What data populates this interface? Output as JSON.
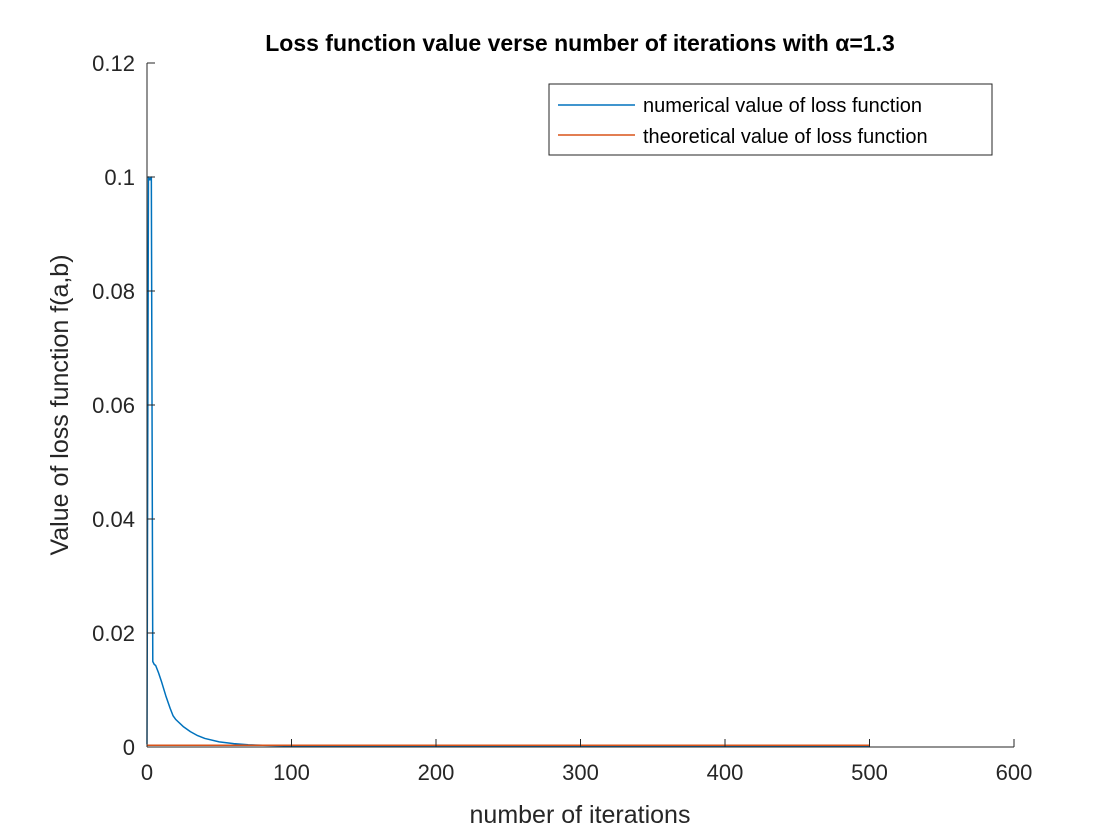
{
  "chart_data": {
    "type": "line",
    "title": "Loss function value verse number of iterations with α=1.3",
    "xlabel": "number of iterations",
    "ylabel": "Value of loss function f(a,b)",
    "xlim": [
      0,
      600
    ],
    "ylim": [
      0,
      0.12
    ],
    "xticks": [
      0,
      100,
      200,
      300,
      400,
      500,
      600
    ],
    "yticks": [
      0,
      0.02,
      0.04,
      0.06,
      0.08,
      0.1,
      0.12
    ],
    "xtick_labels": [
      "0",
      "100",
      "200",
      "300",
      "400",
      "500",
      "600"
    ],
    "ytick_labels": [
      "0",
      "0.02",
      "0.04",
      "0.06",
      "0.08",
      "0.1",
      "0.12"
    ],
    "grid": false,
    "legend_position": "top-right",
    "series": [
      {
        "name": "numerical value of loss function",
        "color": "#0072BD",
        "x": [
          0,
          1,
          2,
          3,
          4,
          5,
          6,
          8,
          10,
          13,
          16,
          18,
          20,
          25,
          30,
          35,
          40,
          50,
          60,
          70,
          80,
          90,
          100,
          120,
          150,
          200,
          300,
          400,
          500
        ],
        "y": [
          0.0005,
          0.1,
          0.0995,
          0.1,
          0.015,
          0.0145,
          0.0143,
          0.013,
          0.0115,
          0.009,
          0.0068,
          0.0055,
          0.0048,
          0.0036,
          0.0027,
          0.002,
          0.0015,
          0.0009,
          0.0006,
          0.0004,
          0.0003,
          0.00025,
          0.0002,
          0.0002,
          0.0002,
          0.0002,
          0.0002,
          0.0002,
          0.0002
        ]
      },
      {
        "name": "theoretical value of loss function",
        "color": "#D95319",
        "x": [
          0,
          500
        ],
        "y": [
          0.0003,
          0.0003
        ]
      }
    ]
  }
}
